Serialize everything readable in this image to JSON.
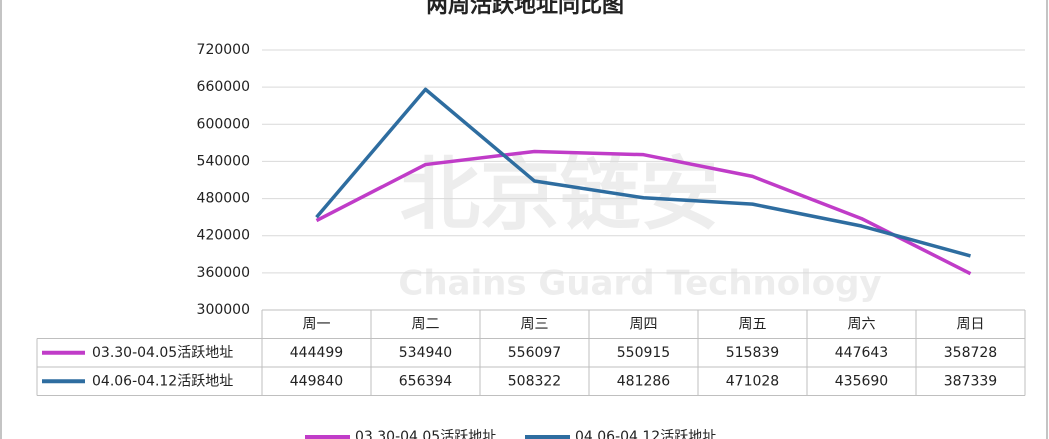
{
  "chart_data": {
    "type": "line",
    "title": "两周活跃地址同比图",
    "watermark": {
      "text": "北京链安",
      "subtitle": "Chains Guard Technology"
    },
    "categories": [
      "周一",
      "周二",
      "周三",
      "周四",
      "周五",
      "周六",
      "周日"
    ],
    "series": [
      {
        "name": "03.30-04.05活跃地址",
        "color": "#c03cc8",
        "values": [
          444499,
          534940,
          556097,
          550915,
          515839,
          447643,
          358728
        ]
      },
      {
        "name": "04.06-04.12活跃地址",
        "color": "#2e6da0",
        "values": [
          449840,
          656394,
          508322,
          481286,
          471028,
          435690,
          387339
        ]
      }
    ],
    "ylim": [
      300000,
      720000
    ],
    "yticks": [
      300000,
      360000,
      420000,
      480000,
      540000,
      600000,
      660000,
      720000
    ],
    "grid": true,
    "legend": "bottom",
    "data_table": true
  }
}
